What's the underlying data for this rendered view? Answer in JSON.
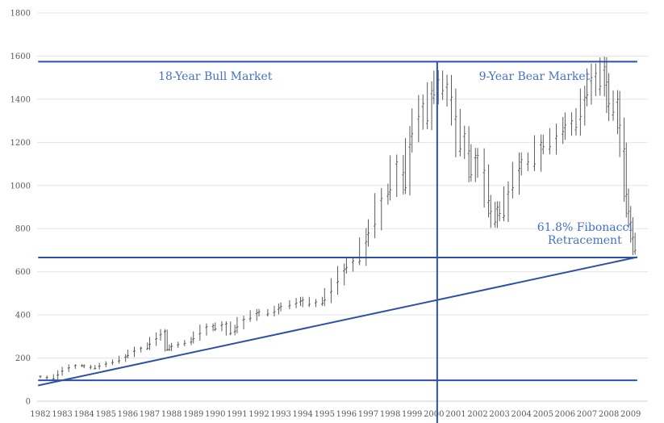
{
  "chart_data": {
    "type": "bar",
    "subtype": "OHLC price bars",
    "title": "",
    "xlabel": "",
    "ylabel": "",
    "ylim": [
      0,
      1800
    ],
    "yticks": [
      0,
      200,
      400,
      600,
      800,
      1000,
      1200,
      1400,
      1600,
      1800
    ],
    "x_start": 1982.0,
    "x_end": 2009.3,
    "xticks": [
      "1982",
      "1983",
      "1984",
      "1985",
      "1986",
      "1987",
      "1988",
      "1989",
      "1990",
      "1991",
      "1992",
      "1993",
      "1994",
      "1995",
      "1996",
      "1997",
      "1998",
      "1999",
      "2000",
      "2001",
      "2002",
      "2003",
      "2004",
      "2005",
      "2006",
      "2007",
      "2008",
      "2009"
    ],
    "grid": true,
    "series": [
      {
        "values": [
          [
            1982.0,
            116
          ],
          [
            1982.3,
            110
          ],
          [
            1982.6,
            104
          ],
          [
            1982.8,
            122
          ],
          [
            1983.0,
            140
          ],
          [
            1983.3,
            155
          ],
          [
            1983.6,
            166
          ],
          [
            1983.9,
            166
          ],
          [
            1984.0,
            164
          ],
          [
            1984.3,
            158
          ],
          [
            1984.5,
            152
          ],
          [
            1984.7,
            163
          ],
          [
            1985.0,
            173
          ],
          [
            1985.3,
            180
          ],
          [
            1985.6,
            188
          ],
          [
            1985.9,
            205
          ],
          [
            1986.0,
            212
          ],
          [
            1986.3,
            233
          ],
          [
            1986.6,
            246
          ],
          [
            1986.9,
            245
          ],
          [
            1987.0,
            265
          ],
          [
            1987.3,
            290
          ],
          [
            1987.5,
            310
          ],
          [
            1987.7,
            325
          ],
          [
            1987.8,
            240
          ],
          [
            1987.9,
            240
          ],
          [
            1988.0,
            255
          ],
          [
            1988.3,
            263
          ],
          [
            1988.6,
            268
          ],
          [
            1988.9,
            276
          ],
          [
            1989.0,
            290
          ],
          [
            1989.3,
            315
          ],
          [
            1989.6,
            345
          ],
          [
            1989.9,
            350
          ],
          [
            1990.0,
            335
          ],
          [
            1990.3,
            355
          ],
          [
            1990.5,
            360
          ],
          [
            1990.7,
            315
          ],
          [
            1990.9,
            325
          ],
          [
            1991.0,
            345
          ],
          [
            1991.3,
            380
          ],
          [
            1991.6,
            385
          ],
          [
            1991.9,
            410
          ],
          [
            1992.0,
            415
          ],
          [
            1992.4,
            405
          ],
          [
            1992.7,
            415
          ],
          [
            1992.9,
            430
          ],
          [
            1993.0,
            440
          ],
          [
            1993.4,
            445
          ],
          [
            1993.7,
            455
          ],
          [
            1993.9,
            465
          ],
          [
            1994.0,
            470
          ],
          [
            1994.3,
            450
          ],
          [
            1994.6,
            460
          ],
          [
            1994.9,
            455
          ],
          [
            1995.0,
            470
          ],
          [
            1995.3,
            510
          ],
          [
            1995.6,
            555
          ],
          [
            1995.9,
            610
          ],
          [
            1996.0,
            620
          ],
          [
            1996.3,
            650
          ],
          [
            1996.6,
            650
          ],
          [
            1996.9,
            740
          ],
          [
            1997.0,
            780
          ],
          [
            1997.3,
            820
          ],
          [
            1997.6,
            940
          ],
          [
            1997.9,
            960
          ],
          [
            1998.0,
            980
          ],
          [
            1998.3,
            1110
          ],
          [
            1998.6,
            1060
          ],
          [
            1998.7,
            990
          ],
          [
            1998.9,
            1190
          ],
          [
            1999.0,
            1240
          ],
          [
            1999.3,
            1320
          ],
          [
            1999.5,
            1380
          ],
          [
            1999.7,
            1300
          ],
          [
            1999.9,
            1440
          ],
          [
            2000.0,
            1420
          ],
          [
            2000.2,
            1490
          ],
          [
            2000.4,
            1440
          ],
          [
            2000.6,
            1470
          ],
          [
            2000.8,
            1410
          ],
          [
            2001.0,
            1320
          ],
          [
            2001.2,
            1170
          ],
          [
            2001.4,
            1240
          ],
          [
            2001.6,
            1160
          ],
          [
            2001.7,
            1050
          ],
          [
            2001.9,
            1140
          ],
          [
            2002.0,
            1140
          ],
          [
            2002.3,
            1070
          ],
          [
            2002.5,
            930
          ],
          [
            2002.6,
            880
          ],
          [
            2002.8,
            830
          ],
          [
            2002.9,
            900
          ],
          [
            2003.0,
            870
          ],
          [
            2003.2,
            860
          ],
          [
            2003.4,
            970
          ],
          [
            2003.6,
            990
          ],
          [
            2003.9,
            1080
          ],
          [
            2004.0,
            1120
          ],
          [
            2004.3,
            1110
          ],
          [
            2004.6,
            1100
          ],
          [
            2004.9,
            1200
          ],
          [
            2005.0,
            1180
          ],
          [
            2005.3,
            1180
          ],
          [
            2005.6,
            1230
          ],
          [
            2005.9,
            1250
          ],
          [
            2006.0,
            1280
          ],
          [
            2006.3,
            1300
          ],
          [
            2006.5,
            1270
          ],
          [
            2006.7,
            1320
          ],
          [
            2006.9,
            1410
          ],
          [
            2007.0,
            1420
          ],
          [
            2007.2,
            1500
          ],
          [
            2007.4,
            1520
          ],
          [
            2007.6,
            1460
          ],
          [
            2007.8,
            1550
          ],
          [
            2007.9,
            1480
          ],
          [
            2008.0,
            1380
          ],
          [
            2008.2,
            1340
          ],
          [
            2008.4,
            1400
          ],
          [
            2008.5,
            1280
          ],
          [
            2008.7,
            1170
          ],
          [
            2008.8,
            960
          ],
          [
            2008.9,
            880
          ],
          [
            2009.0,
            830
          ],
          [
            2009.1,
            760
          ],
          [
            2009.2,
            700
          ]
        ]
      }
    ],
    "trendlines": [
      {
        "from": [
          1981.9,
          73
        ],
        "to": [
          2009.3,
          668
        ]
      },
      {
        "from": [
          1981.9,
          1574
        ],
        "to": [
          2009.3,
          1574
        ]
      },
      {
        "from": [
          1981.9,
          666
        ],
        "to": [
          2009.3,
          666
        ]
      },
      {
        "from": [
          1981.9,
          97
        ],
        "to": [
          2009.3,
          97
        ]
      }
    ],
    "vertical_line_x": 2000.15,
    "annotations": [
      {
        "text": "18-Year Bull Market",
        "x": 1990.0,
        "y": 1490
      },
      {
        "text": "9-Year Bear Market",
        "x": 2004.6,
        "y": 1490
      },
      {
        "text": "61.8% Fibonacci",
        "x": 2006.9,
        "y": 790
      },
      {
        "text": "Retracement",
        "x": 2006.9,
        "y": 730
      }
    ],
    "colors": {
      "bars": "#5a5a5a",
      "lines": "#2e50a8",
      "annotation_text": "#4472c4",
      "grid": "#e4e4e4",
      "ticks": "#595959"
    }
  }
}
